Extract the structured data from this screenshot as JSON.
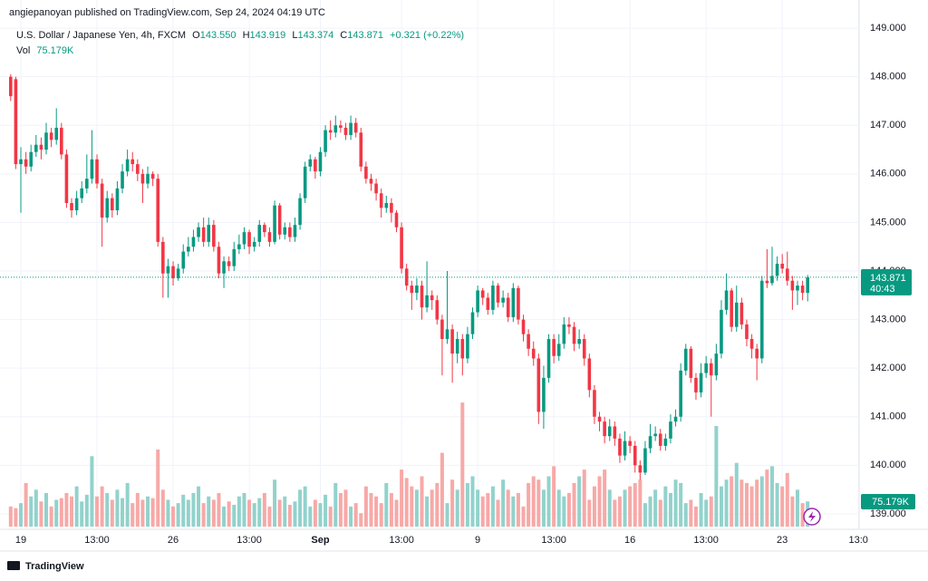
{
  "header": {
    "published": "angiepanoyan published on TradingView.com, Sep 24, 2024 04:19 UTC",
    "symbol": "U.S. Dollar / Japanese Yen, 4h, FXCM",
    "o_label": "O",
    "o": "143.550",
    "h_label": "H",
    "h": "143.919",
    "l_label": "L",
    "l": "143.374",
    "c_label": "C",
    "c": "143.871",
    "change": "+0.321 (+0.22%)",
    "vol_label": "Vol",
    "vol": "75.179K"
  },
  "footer": {
    "brand": "TradingView"
  },
  "chart_data": {
    "type": "candlestick",
    "up_color": "#089981",
    "down_color": "#f23645",
    "up_volume_color": "#92d2cc",
    "down_volume_color": "#f7a9a7",
    "grid": true,
    "xlim": [
      -0.5,
      167.5
    ],
    "ylim": [
      138.7,
      149.58
    ],
    "xticks": [
      {
        "value": 2,
        "label": "19"
      },
      {
        "value": 17,
        "label": "13:00"
      },
      {
        "value": 32,
        "label": "26"
      },
      {
        "value": 47,
        "label": "13:00"
      },
      {
        "value": 61,
        "label": "Sep"
      },
      {
        "value": 77,
        "label": "13:00"
      },
      {
        "value": 92,
        "label": "9"
      },
      {
        "value": 107,
        "label": "13:00"
      },
      {
        "value": 122,
        "label": "16"
      },
      {
        "value": 137,
        "label": "13:00"
      },
      {
        "value": 152,
        "label": "23"
      },
      {
        "value": 167,
        "label": "13:0"
      }
    ],
    "yticks": [
      {
        "value": 139,
        "label": "139.000"
      },
      {
        "value": 140,
        "label": "140.000"
      },
      {
        "value": 141,
        "label": "141.000"
      },
      {
        "value": 142,
        "label": "142.000"
      },
      {
        "value": 143,
        "label": "143.000"
      },
      {
        "value": 144,
        "label": "144.000"
      },
      {
        "value": 145,
        "label": "145.000"
      },
      {
        "value": 146,
        "label": "146.000"
      },
      {
        "value": 147,
        "label": "147.000"
      },
      {
        "value": 148,
        "label": "148.000"
      },
      {
        "value": 149,
        "label": "149.000"
      }
    ],
    "last_price": {
      "value": 143.871,
      "label": "143.871"
    },
    "countdown": "40:43",
    "volume_label": "75.179K",
    "open": [
      148.0,
      147.95,
      146.2,
      146.3,
      146.15,
      146.45,
      146.6,
      146.5,
      146.85,
      146.7,
      146.95,
      146.4,
      145.4,
      145.25,
      145.5,
      145.7,
      145.9,
      146.3,
      145.8,
      145.1,
      145.5,
      145.25,
      145.7,
      146.05,
      146.3,
      146.2,
      146.0,
      145.8,
      146.0,
      145.9,
      144.6,
      143.95,
      144.1,
      143.85,
      144.05,
      144.4,
      144.5,
      144.7,
      144.9,
      144.6,
      144.95,
      144.5,
      143.95,
      144.2,
      144.1,
      144.45,
      144.55,
      144.8,
      144.5,
      144.6,
      144.95,
      144.8,
      144.6,
      145.35,
      144.75,
      144.9,
      144.7,
      144.95,
      145.5,
      146.15,
      146.3,
      146.05,
      146.45,
      146.9,
      146.85,
      147.0,
      146.95,
      146.8,
      147.05,
      146.85,
      146.15,
      145.9,
      145.8,
      145.6,
      145.3,
      145.4,
      145.2,
      144.9,
      144.05,
      143.7,
      143.55,
      143.7,
      143.25,
      143.5,
      143.4,
      143.0,
      142.6,
      142.8,
      142.3,
      142.6,
      142.2,
      142.7,
      143.15,
      143.6,
      143.45,
      143.2,
      143.7,
      143.35,
      143.45,
      143.05,
      143.65,
      143.0,
      142.7,
      142.4,
      142.2,
      141.1,
      141.8,
      142.6,
      142.25,
      142.5,
      142.9,
      142.85,
      142.5,
      142.6,
      142.2,
      141.55,
      141.0,
      140.9,
      140.6,
      140.8,
      140.55,
      140.2,
      140.5,
      140.4,
      140.0,
      139.85,
      140.35,
      140.6,
      140.65,
      140.4,
      140.55,
      140.9,
      141.0,
      141.95,
      142.4,
      141.8,
      141.5,
      141.9,
      142.1,
      141.85,
      142.3,
      143.2,
      143.6,
      142.85,
      143.35,
      142.9,
      142.6,
      142.4,
      142.2,
      143.8,
      143.75,
      143.9,
      144.15,
      144.05,
      143.8,
      143.6,
      143.7,
      143.55
    ],
    "high": [
      148.05,
      148.0,
      146.55,
      146.45,
      146.6,
      146.8,
      146.75,
      147.05,
      146.95,
      147.35,
      147.05,
      146.5,
      145.5,
      145.65,
      145.85,
      146.4,
      146.9,
      146.4,
      145.9,
      145.65,
      145.6,
      145.85,
      146.2,
      146.5,
      146.45,
      146.3,
      146.1,
      146.15,
      146.05,
      146.0,
      144.7,
      144.25,
      144.2,
      144.15,
      144.55,
      144.7,
      144.85,
      145.0,
      145.1,
      145.1,
      145.05,
      144.6,
      144.3,
      144.3,
      144.6,
      144.75,
      144.9,
      144.85,
      144.7,
      145.05,
      145.0,
      144.9,
      145.45,
      145.4,
      145.0,
      145.0,
      145.1,
      145.6,
      146.25,
      146.4,
      146.35,
      146.55,
      147.0,
      147.1,
      147.2,
      147.1,
      147.05,
      147.2,
      147.15,
      146.95,
      146.25,
      146.0,
      145.9,
      145.7,
      145.55,
      145.5,
      145.25,
      145.0,
      144.15,
      143.8,
      143.85,
      143.8,
      144.2,
      143.6,
      143.5,
      143.1,
      144.0,
      142.9,
      142.75,
      142.7,
      142.85,
      143.25,
      143.7,
      143.65,
      143.55,
      143.8,
      143.75,
      143.6,
      143.55,
      143.75,
      143.7,
      143.1,
      142.8,
      142.55,
      142.3,
      142.05,
      142.7,
      142.7,
      142.7,
      143.05,
      143.05,
      142.95,
      142.8,
      142.7,
      142.3,
      141.65,
      141.1,
      141.0,
      140.95,
      140.9,
      140.65,
      140.7,
      140.6,
      140.5,
      140.1,
      140.5,
      140.85,
      140.8,
      140.75,
      140.65,
      141.05,
      141.15,
      142.1,
      142.5,
      142.45,
      141.9,
      142.1,
      142.25,
      142.2,
      142.5,
      143.4,
      143.95,
      143.65,
      143.7,
      143.45,
      143.0,
      142.7,
      142.5,
      143.9,
      144.45,
      144.5,
      144.3,
      144.35,
      144.4,
      143.9,
      143.8,
      143.8,
      143.919
    ],
    "low": [
      147.5,
      146.1,
      145.2,
      146.0,
      146.05,
      146.35,
      146.3,
      146.4,
      146.55,
      146.6,
      146.3,
      145.3,
      145.1,
      145.15,
      145.4,
      145.6,
      145.8,
      145.7,
      144.5,
      145.0,
      145.1,
      145.15,
      145.6,
      145.95,
      146.05,
      145.85,
      145.4,
      145.7,
      145.75,
      144.5,
      143.45,
      143.45,
      143.7,
      143.8,
      143.95,
      144.3,
      144.4,
      144.6,
      144.5,
      144.5,
      144.4,
      143.85,
      143.65,
      144.0,
      144.0,
      144.35,
      144.45,
      144.35,
      144.4,
      144.5,
      144.7,
      144.5,
      144.55,
      144.65,
      144.65,
      144.6,
      144.6,
      144.85,
      145.4,
      146.05,
      145.9,
      145.95,
      146.35,
      146.7,
      146.75,
      146.85,
      146.7,
      146.7,
      146.75,
      146.05,
      145.8,
      145.65,
      145.45,
      145.1,
      145.2,
      145.0,
      144.8,
      143.95,
      143.6,
      143.2,
      143.4,
      143.0,
      143.15,
      143.2,
      142.9,
      141.85,
      142.5,
      141.7,
      142.1,
      141.85,
      142.1,
      142.6,
      143.05,
      143.3,
      143.1,
      143.1,
      143.25,
      143.25,
      142.95,
      142.95,
      142.9,
      142.55,
      142.25,
      142.05,
      140.85,
      140.75,
      141.7,
      142.1,
      142.15,
      142.4,
      142.7,
      142.35,
      142.4,
      142.05,
      141.4,
      140.85,
      140.7,
      140.45,
      140.5,
      140.4,
      140.05,
      140.1,
      140.25,
      139.85,
      139.7,
      139.8,
      140.25,
      140.5,
      140.3,
      140.3,
      140.45,
      140.8,
      140.9,
      141.85,
      141.7,
      141.35,
      141.4,
      141.8,
      141.0,
      141.75,
      142.2,
      143.1,
      142.75,
      142.75,
      142.8,
      142.45,
      142.2,
      141.75,
      142.1,
      143.65,
      143.7,
      143.8,
      143.95,
      143.7,
      143.2,
      143.3,
      143.4,
      143.374
    ],
    "close": [
      147.6,
      146.2,
      146.3,
      146.15,
      146.45,
      146.6,
      146.5,
      146.85,
      146.7,
      146.95,
      146.4,
      145.4,
      145.25,
      145.5,
      145.7,
      145.9,
      146.3,
      145.8,
      145.1,
      145.5,
      145.25,
      145.7,
      146.05,
      146.3,
      146.2,
      146.0,
      145.8,
      146.0,
      145.9,
      144.6,
      143.95,
      144.1,
      143.85,
      144.05,
      144.4,
      144.5,
      144.7,
      144.9,
      144.6,
      144.95,
      144.5,
      143.95,
      144.2,
      144.1,
      144.45,
      144.55,
      144.8,
      144.5,
      144.6,
      144.95,
      144.8,
      144.6,
      145.35,
      144.75,
      144.9,
      144.7,
      144.95,
      145.5,
      146.15,
      146.3,
      146.05,
      146.45,
      146.9,
      146.85,
      147.0,
      146.95,
      146.8,
      147.05,
      146.85,
      146.15,
      145.9,
      145.8,
      145.6,
      145.3,
      145.4,
      145.2,
      144.9,
      144.05,
      143.7,
      143.55,
      143.7,
      143.25,
      143.5,
      143.4,
      143.0,
      142.6,
      142.8,
      142.3,
      142.6,
      142.2,
      142.7,
      143.15,
      143.6,
      143.45,
      143.2,
      143.7,
      143.35,
      143.45,
      143.05,
      143.65,
      143.0,
      142.7,
      142.4,
      142.2,
      141.1,
      141.8,
      142.6,
      142.25,
      142.5,
      142.9,
      142.85,
      142.5,
      142.6,
      142.2,
      141.55,
      141.0,
      140.9,
      140.6,
      140.8,
      140.55,
      140.2,
      140.5,
      140.4,
      140.0,
      139.85,
      140.35,
      140.6,
      140.65,
      140.4,
      140.55,
      140.9,
      141.0,
      141.95,
      142.4,
      141.8,
      141.5,
      141.9,
      142.1,
      141.85,
      142.3,
      143.2,
      143.6,
      142.85,
      143.35,
      142.9,
      142.6,
      142.4,
      142.2,
      143.8,
      143.75,
      143.9,
      144.15,
      144.05,
      143.8,
      143.6,
      143.7,
      143.55,
      143.871
    ],
    "volume": [
      60,
      55,
      70,
      130,
      90,
      110,
      75,
      100,
      60,
      80,
      85,
      100,
      90,
      120,
      75,
      95,
      210,
      90,
      120,
      100,
      80,
      110,
      85,
      130,
      70,
      100,
      80,
      90,
      85,
      230,
      110,
      80,
      60,
      70,
      95,
      80,
      100,
      120,
      70,
      90,
      80,
      100,
      60,
      75,
      65,
      90,
      100,
      80,
      70,
      85,
      100,
      60,
      140,
      80,
      90,
      65,
      75,
      110,
      120,
      60,
      80,
      70,
      95,
      60,
      130,
      100,
      110,
      60,
      70,
      40,
      120,
      100,
      90,
      70,
      130,
      100,
      80,
      170,
      145,
      120,
      110,
      150,
      90,
      110,
      130,
      220,
      70,
      140,
      110,
      370,
      130,
      150,
      110,
      90,
      100,
      120,
      80,
      140,
      110,
      90,
      100,
      60,
      130,
      150,
      140,
      110,
      150,
      180,
      110,
      90,
      100,
      130,
      150,
      170,
      80,
      120,
      150,
      170,
      110,
      80,
      90,
      110,
      120,
      130,
      140,
      70,
      90,
      110,
      80,
      120,
      100,
      140,
      130,
      70,
      80,
      60,
      100,
      80,
      90,
      300,
      120,
      140,
      150,
      190,
      140,
      130,
      120,
      140,
      150,
      170,
      180,
      130,
      120,
      160,
      90,
      110,
      70,
      75.179
    ]
  }
}
